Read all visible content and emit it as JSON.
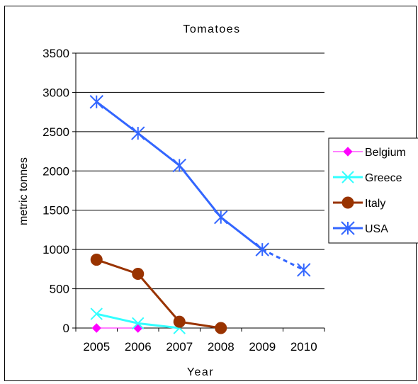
{
  "chart_data": {
    "type": "line",
    "title": "Tomatoes",
    "xlabel": "Year",
    "ylabel": "metric tonnes",
    "x": [
      "2005",
      "2006",
      "2007",
      "2008",
      "2009",
      "2010"
    ],
    "ylim": [
      0,
      3500
    ],
    "yticks": [
      0,
      500,
      1000,
      1500,
      2000,
      2500,
      3000,
      3500
    ],
    "grid": true,
    "legend_position": "right",
    "series": [
      {
        "name": "Belgium",
        "color": "#ff00ff",
        "marker": "diamond",
        "values": [
          0,
          0,
          null,
          null,
          null,
          null
        ]
      },
      {
        "name": "Greece",
        "color": "#33ffff",
        "marker": "x",
        "values": [
          180,
          60,
          0,
          null,
          null,
          null
        ]
      },
      {
        "name": "Italy",
        "color": "#993300",
        "marker": "circle",
        "values": [
          870,
          690,
          80,
          0,
          null,
          null
        ]
      },
      {
        "name": "USA",
        "color": "#3366ff",
        "marker": "asterisk",
        "values": [
          2880,
          2480,
          2070,
          1410,
          1000,
          740
        ],
        "dashed_from_index": 4
      }
    ]
  }
}
